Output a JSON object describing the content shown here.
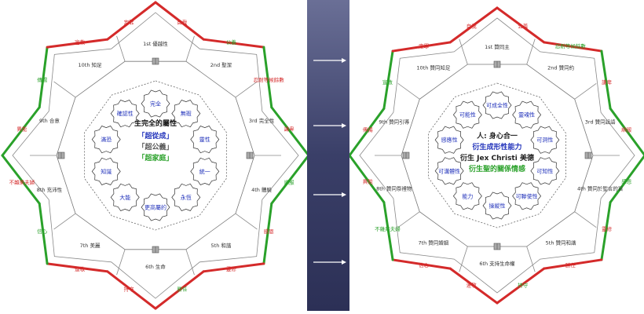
{
  "colors": {
    "red": "#d42a2a",
    "green": "#2aa12a",
    "blue": "#2233bb",
    "navy": "#3b3f6b",
    "grey": "#555555"
  },
  "left": {
    "outer_labels": [
      "自我",
      "公義",
      "忍耐等候餘數",
      "謙卑",
      "順服",
      "感恩",
      "靈修",
      "勝任",
      "持守",
      "連敬",
      "信心",
      "不雜果夫婦",
      "異能",
      "傳揚",
      "宣教",
      "定罪"
    ],
    "rooms": [
      "1st 優越性",
      "2nd 聖潔",
      "3rd 完全性",
      "4th 體驗",
      "5th 和諧",
      "6th 生命",
      "7th 美麗",
      "8th 充沛性",
      "9th 合意",
      "10th 知足"
    ],
    "inner_nodes": [
      "完全",
      "無瑕",
      "靈性",
      "統一",
      "永恆",
      "更高屬的",
      "大能",
      "知識",
      "滿恐",
      "確認性"
    ],
    "center_title": "主完全的屬性",
    "center_lines": [
      {
        "text": "「超從成」",
        "color": "#2233bb"
      },
      {
        "text": "「超公義」",
        "color": "#555555"
      },
      {
        "text": "「超家庭」",
        "color": "#2aa12a"
      }
    ]
  },
  "right": {
    "outer_labels": [
      "公義",
      "忍耐等候餘數",
      "謙卑",
      "順服",
      "感恩",
      "靈修",
      "勝任",
      "持守",
      "連敬",
      "信心",
      "不雜果夫婦",
      "異能",
      "傳揚",
      "宣教",
      "定罪",
      "自我"
    ],
    "rooms": [
      "1st 贊同主",
      "2nd 贊同約",
      "3rd 贊同話語",
      "4th 贊同於聖言的旨",
      "5th 贊同和諧",
      "6th 支持生命權",
      "7th 贊同婚姻",
      "8th 贊同祭禮物",
      "9th 贊同引導",
      "10th 贊同知足"
    ],
    "inner_nodes": [
      "可成全性",
      "靈魂性",
      "可洞性",
      "可知性",
      "可聯使性",
      "操縱性",
      "能力",
      "可溝體性",
      "感應性",
      "可能性"
    ],
    "center_lines": [
      {
        "text": "人: 身心合一",
        "color": "#222222"
      },
      {
        "text": "衍生成形性能力",
        "color": "#2233bb"
      },
      {
        "text": "衍生 Jex Christi 美德",
        "color": "#222222"
      },
      {
        "text": "衍生聖的關係情感",
        "color": "#2aa12a"
      }
    ]
  },
  "arrow_count": 4
}
